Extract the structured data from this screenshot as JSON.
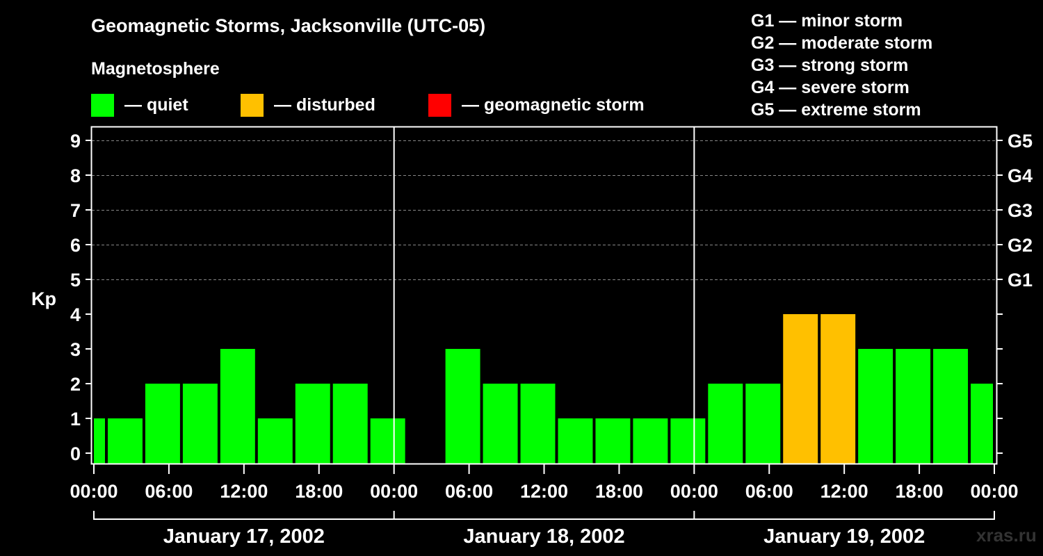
{
  "chart_data": {
    "type": "bar",
    "title": "Geomagnetic Storms, Jacksonville (UTC-05)",
    "subtitle": "Magnetosphere",
    "ylabel": "Kp",
    "ylim": [
      0,
      9
    ],
    "y_ticks": [
      "0",
      "1",
      "2",
      "3",
      "4",
      "5",
      "6",
      "7",
      "8",
      "9"
    ],
    "g_ticks": [
      {
        "kp": 5,
        "label": "G1"
      },
      {
        "kp": 6,
        "label": "G2"
      },
      {
        "kp": 7,
        "label": "G3"
      },
      {
        "kp": 8,
        "label": "G4"
      },
      {
        "kp": 9,
        "label": "G5"
      }
    ],
    "x_tick_labels": [
      "00:00",
      "06:00",
      "12:00",
      "18:00",
      "00:00",
      "06:00",
      "12:00",
      "18:00",
      "00:00",
      "06:00",
      "12:00",
      "18:00",
      "00:00"
    ],
    "days": [
      "January 17, 2002",
      "January 18, 2002",
      "January 19, 2002"
    ],
    "x_range_hours": [
      0,
      72
    ],
    "bars": [
      {
        "start_hour": 0,
        "end_hour": 1,
        "kp": 1
      },
      {
        "start_hour": 1,
        "end_hour": 4,
        "kp": 1
      },
      {
        "start_hour": 4,
        "end_hour": 7,
        "kp": 2
      },
      {
        "start_hour": 7,
        "end_hour": 10,
        "kp": 2
      },
      {
        "start_hour": 10,
        "end_hour": 13,
        "kp": 3
      },
      {
        "start_hour": 13,
        "end_hour": 16,
        "kp": 1
      },
      {
        "start_hour": 16,
        "end_hour": 19,
        "kp": 2
      },
      {
        "start_hour": 19,
        "end_hour": 22,
        "kp": 2
      },
      {
        "start_hour": 22,
        "end_hour": 25,
        "kp": 1
      },
      {
        "start_hour": 28,
        "end_hour": 31,
        "kp": 3
      },
      {
        "start_hour": 31,
        "end_hour": 34,
        "kp": 2
      },
      {
        "start_hour": 34,
        "end_hour": 37,
        "kp": 2
      },
      {
        "start_hour": 37,
        "end_hour": 40,
        "kp": 1
      },
      {
        "start_hour": 40,
        "end_hour": 43,
        "kp": 1
      },
      {
        "start_hour": 43,
        "end_hour": 46,
        "kp": 1
      },
      {
        "start_hour": 46,
        "end_hour": 49,
        "kp": 1
      },
      {
        "start_hour": 49,
        "end_hour": 52,
        "kp": 2
      },
      {
        "start_hour": 52,
        "end_hour": 55,
        "kp": 2
      },
      {
        "start_hour": 55,
        "end_hour": 58,
        "kp": 4
      },
      {
        "start_hour": 58,
        "end_hour": 61,
        "kp": 4
      },
      {
        "start_hour": 61,
        "end_hour": 64,
        "kp": 3
      },
      {
        "start_hour": 64,
        "end_hour": 67,
        "kp": 3
      },
      {
        "start_hour": 67,
        "end_hour": 70,
        "kp": 3
      },
      {
        "start_hour": 70,
        "end_hour": 72,
        "kp": 2
      }
    ],
    "grid": true,
    "legend": [
      {
        "label": "— quiet",
        "color": "#00ff00"
      },
      {
        "label": "— disturbed",
        "color": "#ffc000"
      },
      {
        "label": "— geomagnetic storm",
        "color": "#ff0000"
      }
    ],
    "storm_scale": [
      "G1 — minor storm",
      "G2 — moderate storm",
      "G3 — strong storm",
      "G4 — severe storm",
      "G5 — extreme storm"
    ]
  },
  "colors": {
    "quiet": "#00ff00",
    "disturbed": "#ffc000",
    "storm": "#ff0000"
  },
  "watermark": "xras.ru"
}
